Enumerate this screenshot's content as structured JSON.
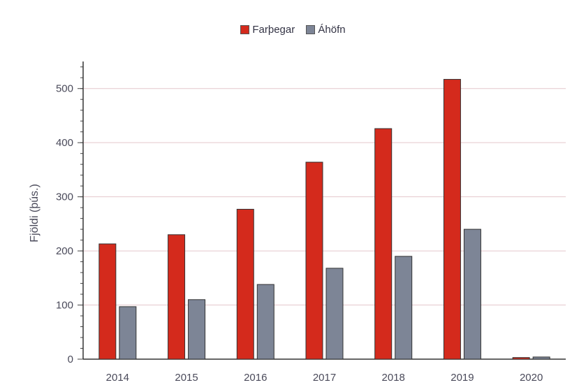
{
  "chart_data": {
    "type": "bar",
    "categories": [
      "2014",
      "2015",
      "2016",
      "2017",
      "2018",
      "2019",
      "2020"
    ],
    "series": [
      {
        "name": "Farþegar",
        "color": "#d42a1c",
        "values": [
          213,
          230,
          277,
          364,
          426,
          517,
          3
        ]
      },
      {
        "name": "Áhöfn",
        "color": "#7d8596",
        "values": [
          97,
          110,
          138,
          168,
          190,
          240,
          4
        ]
      }
    ],
    "ylabel": "Fjöldi (þús.)",
    "xlabel": "",
    "ylim": [
      0,
      550
    ],
    "yticks": [
      "0",
      "100",
      "200",
      "300",
      "400",
      "500"
    ],
    "ytick_values": [
      0,
      100,
      200,
      300,
      400,
      500
    ],
    "grid": true,
    "legend_position": "top-center"
  }
}
